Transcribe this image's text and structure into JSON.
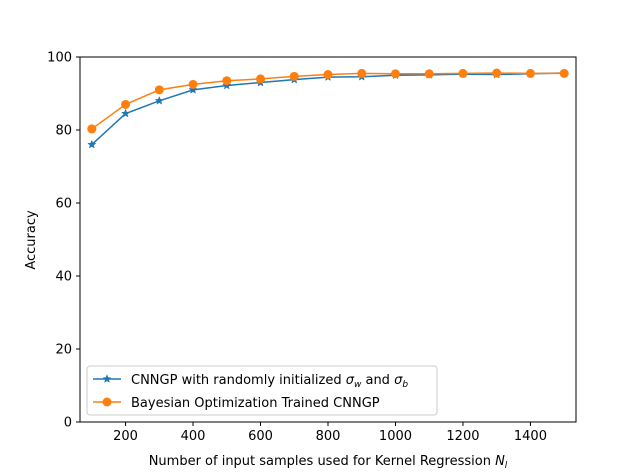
{
  "chart_data": {
    "type": "line",
    "title": "",
    "xlabel": "Number of input samples used for Kernel Regression N_l",
    "xlabel_main": "Number of input samples used for Kernel Regression ",
    "xlabel_var": "N",
    "xlabel_sub": "l",
    "ylabel": "Accuracy",
    "xlim": [
      65,
      1535
    ],
    "ylim": [
      0,
      100
    ],
    "xticks": [
      200,
      400,
      600,
      800,
      1000,
      1200,
      1400
    ],
    "yticks": [
      0,
      20,
      40,
      60,
      80,
      100
    ],
    "x": [
      100,
      200,
      300,
      400,
      500,
      600,
      700,
      800,
      900,
      1000,
      1100,
      1200,
      1300,
      1400,
      1500
    ],
    "series": [
      {
        "name": "CNNGP with randomly initialized σw and σb",
        "legend_prefix": "CNNGP with randomly initialized ",
        "legend_and": " and ",
        "legend_var": "σ",
        "legend_sub1": "w",
        "legend_sub2": "b",
        "color": "#1f77b4",
        "marker": "star",
        "values": [
          76.0,
          84.5,
          88.0,
          91.0,
          92.2,
          93.0,
          93.8,
          94.5,
          94.6,
          95.0,
          95.1,
          95.3,
          95.2,
          95.4,
          95.6
        ]
      },
      {
        "name": "Bayesian Optimization Trained CNNGP",
        "color": "#ff7f0e",
        "marker": "circle",
        "values": [
          80.3,
          87.0,
          91.0,
          92.5,
          93.5,
          94.0,
          94.7,
          95.2,
          95.5,
          95.4,
          95.4,
          95.5,
          95.6,
          95.5,
          95.5
        ]
      }
    ],
    "legend_position": "lower-left",
    "grid": false
  }
}
